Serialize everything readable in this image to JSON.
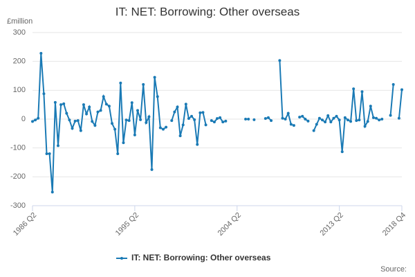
{
  "chart_data": {
    "type": "line",
    "title": "IT: NET: Borrowing: Other overseas",
    "y_label": "£million",
    "source": "Source:",
    "categories": [
      "1986 Q2",
      null,
      null,
      null,
      null,
      null,
      null,
      null,
      null,
      null,
      null,
      null,
      null,
      null,
      null,
      null,
      null,
      null,
      null,
      null,
      null,
      null,
      null,
      null,
      null,
      null,
      null,
      null,
      null,
      null,
      null,
      null,
      null,
      null,
      null,
      null,
      "1995 Q2",
      null,
      null,
      null,
      null,
      null,
      null,
      null,
      null,
      null,
      null,
      null,
      null,
      null,
      null,
      null,
      null,
      null,
      null,
      null,
      null,
      null,
      null,
      null,
      null,
      null,
      null,
      null,
      null,
      null,
      null,
      null,
      null,
      null,
      null,
      null,
      "2004 Q2",
      null,
      null,
      null,
      null,
      null,
      null,
      null,
      null,
      null,
      null,
      null,
      null,
      null,
      null,
      null,
      null,
      null,
      null,
      null,
      null,
      null,
      null,
      null,
      null,
      null,
      null,
      null,
      null,
      null,
      null,
      null,
      null,
      null,
      null,
      null,
      "2013 Q2",
      null,
      null,
      null,
      null,
      null,
      null,
      null,
      null,
      null,
      null,
      null,
      null,
      null,
      null,
      null,
      null,
      null,
      null,
      null,
      null,
      null,
      "2018 Q4"
    ],
    "series": [
      {
        "name": "IT: NET: Borrowing: Other overseas",
        "color": "#1a7ab5",
        "values": [
          -8,
          -3,
          3,
          228,
          88,
          -120,
          -120,
          -253,
          58,
          -92,
          50,
          53,
          20,
          -3,
          -32,
          -7,
          -5,
          -40,
          50,
          18,
          42,
          -8,
          -22,
          25,
          30,
          78,
          52,
          45,
          -15,
          -35,
          -120,
          125,
          -82,
          -3,
          -5,
          57,
          -55,
          30,
          -2,
          120,
          -12,
          8,
          -175,
          145,
          78,
          -30,
          -35,
          -28,
          null,
          -5,
          25,
          42,
          -58,
          -20,
          52,
          2,
          10,
          -2,
          -88,
          22,
          23,
          -20,
          null,
          -5,
          -10,
          2,
          5,
          -10,
          -7,
          null,
          null,
          null,
          null,
          null,
          null,
          0,
          0,
          null,
          -2,
          null,
          null,
          null,
          2,
          5,
          -5,
          null,
          null,
          203,
          3,
          0,
          20,
          -18,
          -22,
          null,
          7,
          10,
          0,
          -7,
          null,
          -40,
          -18,
          3,
          -3,
          -10,
          12,
          -10,
          3,
          10,
          -3,
          -113,
          5,
          -3,
          -8,
          105,
          -5,
          -3,
          95,
          -25,
          -8,
          45,
          5,
          3,
          -3,
          0,
          null,
          null,
          13,
          120,
          null,
          3,
          102
        ]
      }
    ],
    "ylim": [
      -300,
      300
    ],
    "yticks": [
      -300,
      -200,
      -100,
      0,
      100,
      200,
      300
    ],
    "grid": true
  }
}
